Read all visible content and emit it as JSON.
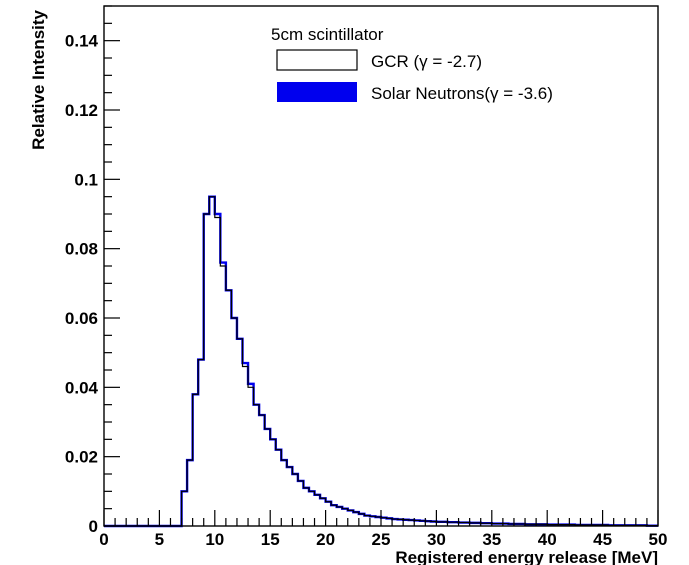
{
  "chart_data": {
    "type": "histogram",
    "xlabel": "Registered energy release [MeV]",
    "ylabel": "Relative Intensity",
    "xlim": [
      0,
      50
    ],
    "ylim": [
      0,
      0.15
    ],
    "x_ticks": [
      0,
      5,
      10,
      15,
      20,
      25,
      30,
      35,
      40,
      45,
      50
    ],
    "x_tick_labels": [
      "0",
      "5",
      "10",
      "15",
      "20",
      "25",
      "30",
      "35",
      "40",
      "45",
      "50"
    ],
    "y_ticks": [
      0,
      0.02,
      0.04,
      0.06,
      0.08,
      0.1,
      0.12,
      0.14
    ],
    "y_tick_labels": [
      "0",
      "0.02",
      "0.04",
      "0.06",
      "0.08",
      "0.1",
      "0.12",
      "0.14"
    ],
    "grid": false,
    "legend": {
      "title": "5cm scintillator",
      "placement": "top-center",
      "entries": [
        {
          "label": "GCR (γ = -2.7)",
          "style": "outline",
          "color": "#000000"
        },
        {
          "label": "Solar Neutrons(γ = -3.6)",
          "style": "filled",
          "color": "#0000ee"
        }
      ]
    },
    "bin_width": 0.5,
    "bin_start": 0,
    "series": [
      {
        "name": "GCR (γ = -2.7)",
        "color": "#000000",
        "values": [
          0,
          0,
          0,
          0,
          0,
          0,
          0,
          0,
          0,
          0,
          0,
          0,
          0,
          0,
          0.01,
          0.019,
          0.038,
          0.048,
          0.09,
          0.095,
          0.089,
          0.075,
          0.068,
          0.06,
          0.054,
          0.046,
          0.04,
          0.035,
          0.032,
          0.028,
          0.025,
          0.022,
          0.019,
          0.017,
          0.015,
          0.013,
          0.011,
          0.01,
          0.009,
          0.008,
          0.007,
          0.006,
          0.0055,
          0.005,
          0.0045,
          0.004,
          0.0035,
          0.003,
          0.0028,
          0.0026,
          0.0024,
          0.0022,
          0.002,
          0.0019,
          0.0018,
          0.0017,
          0.0016,
          0.0015,
          0.0014,
          0.0013,
          0.0012,
          0.0012,
          0.0011,
          0.0011,
          0.001,
          0.001,
          0.0009,
          0.0009,
          0.0008,
          0.0008,
          0.0007,
          0.0007,
          0.0007,
          0.0006,
          0.0006,
          0.0006,
          0.0005,
          0.0005,
          0.0005,
          0.0005,
          0.0004,
          0.0004,
          0.0004,
          0.0004,
          0.0004,
          0.0003,
          0.0003,
          0.0003,
          0.0003,
          0.0003,
          0.0003,
          0.0002,
          0.0002,
          0.0002,
          0.0002,
          0.0002,
          0.0002,
          0.0002,
          0.0001,
          0.0001
        ]
      },
      {
        "name": "Solar Neutrons(γ = -3.6)",
        "color": "#0000ee",
        "values": [
          0,
          0,
          0,
          0,
          0,
          0,
          0,
          0,
          0,
          0,
          0,
          0,
          0,
          0,
          0.01,
          0.019,
          0.038,
          0.048,
          0.09,
          0.095,
          0.09,
          0.076,
          0.068,
          0.06,
          0.054,
          0.047,
          0.041,
          0.035,
          0.032,
          0.028,
          0.025,
          0.022,
          0.019,
          0.017,
          0.015,
          0.013,
          0.011,
          0.01,
          0.009,
          0.008,
          0.007,
          0.006,
          0.0055,
          0.005,
          0.0045,
          0.004,
          0.0035,
          0.003,
          0.0028,
          0.0026,
          0.0024,
          0.0022,
          0.002,
          0.0019,
          0.0018,
          0.0017,
          0.0016,
          0.0015,
          0.0014,
          0.0013,
          0.0012,
          0.0012,
          0.0011,
          0.0011,
          0.001,
          0.001,
          0.0009,
          0.0009,
          0.0008,
          0.0008,
          0.0007,
          0.0007,
          0.0007,
          0.0006,
          0.0006,
          0.0006,
          0.0005,
          0.0005,
          0.0005,
          0.0005,
          0.0004,
          0.0004,
          0.0004,
          0.0004,
          0.0004,
          0.0003,
          0.0003,
          0.0003,
          0.0003,
          0.0003,
          0.0003,
          0.0002,
          0.0002,
          0.0002,
          0.0002,
          0.0002,
          0.0002,
          0.0002,
          0.0001,
          0.0001
        ]
      }
    ]
  }
}
